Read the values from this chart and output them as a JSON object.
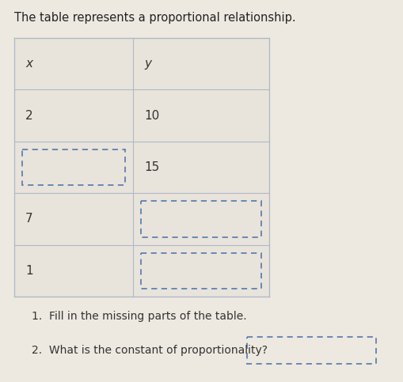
{
  "title": "The table represents a proportional relationship.",
  "title_fontsize": 10.5,
  "background_color": "#ede9e0",
  "table_face_color": "#e8e4db",
  "grid_color": "#b0b8c8",
  "dashed_box_color": "#6080b0",
  "text_color": "#333333",
  "row_labels_x": [
    "x",
    "2",
    "",
    "7",
    "1"
  ],
  "row_labels_y": [
    "y",
    "10",
    "15",
    "",
    ""
  ],
  "dashed_x": [
    false,
    false,
    true,
    false,
    false
  ],
  "dashed_y": [
    false,
    false,
    false,
    true,
    true
  ],
  "question1": "1.  Fill in the missing parts of the table.",
  "question2": "2.  What is the constant of proportionality?",
  "question_fontsize": 10.0
}
